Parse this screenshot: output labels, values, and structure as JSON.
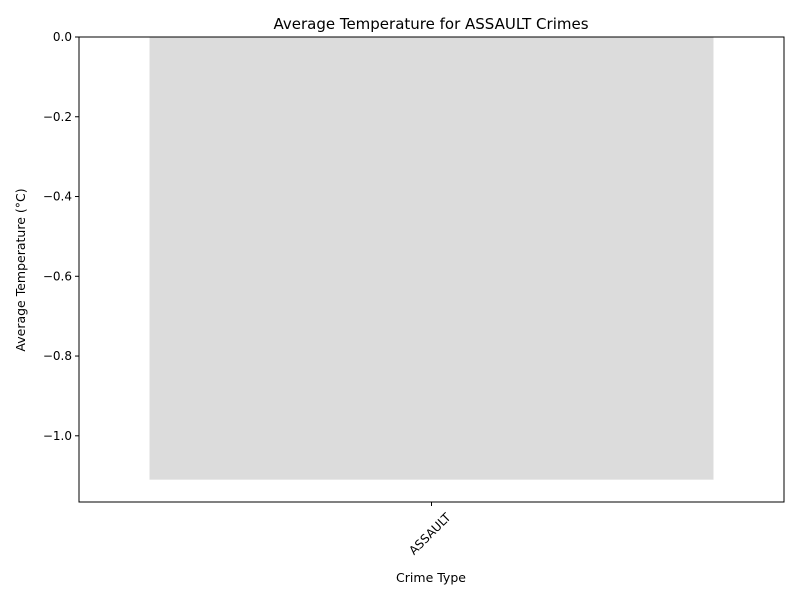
{
  "chart_data": {
    "type": "bar",
    "title": "Average Temperature for ASSAULT Crimes",
    "xlabel": "Crime Type",
    "ylabel": "Average Temperature (°C)",
    "categories": [
      "ASSAULT"
    ],
    "values": [
      -1.11
    ],
    "ylim": [
      -1.166,
      0.0
    ],
    "yticks": [
      0.0,
      -0.2,
      -0.4,
      -0.6,
      -0.8,
      -1.0
    ],
    "ytick_labels": [
      "0.0",
      "−0.2",
      "−0.4",
      "−0.6",
      "−0.8",
      "−1.0"
    ],
    "xtick_rotation_deg": 45,
    "grid": false,
    "legend": "none",
    "bar_color": "#dcdcdc"
  }
}
